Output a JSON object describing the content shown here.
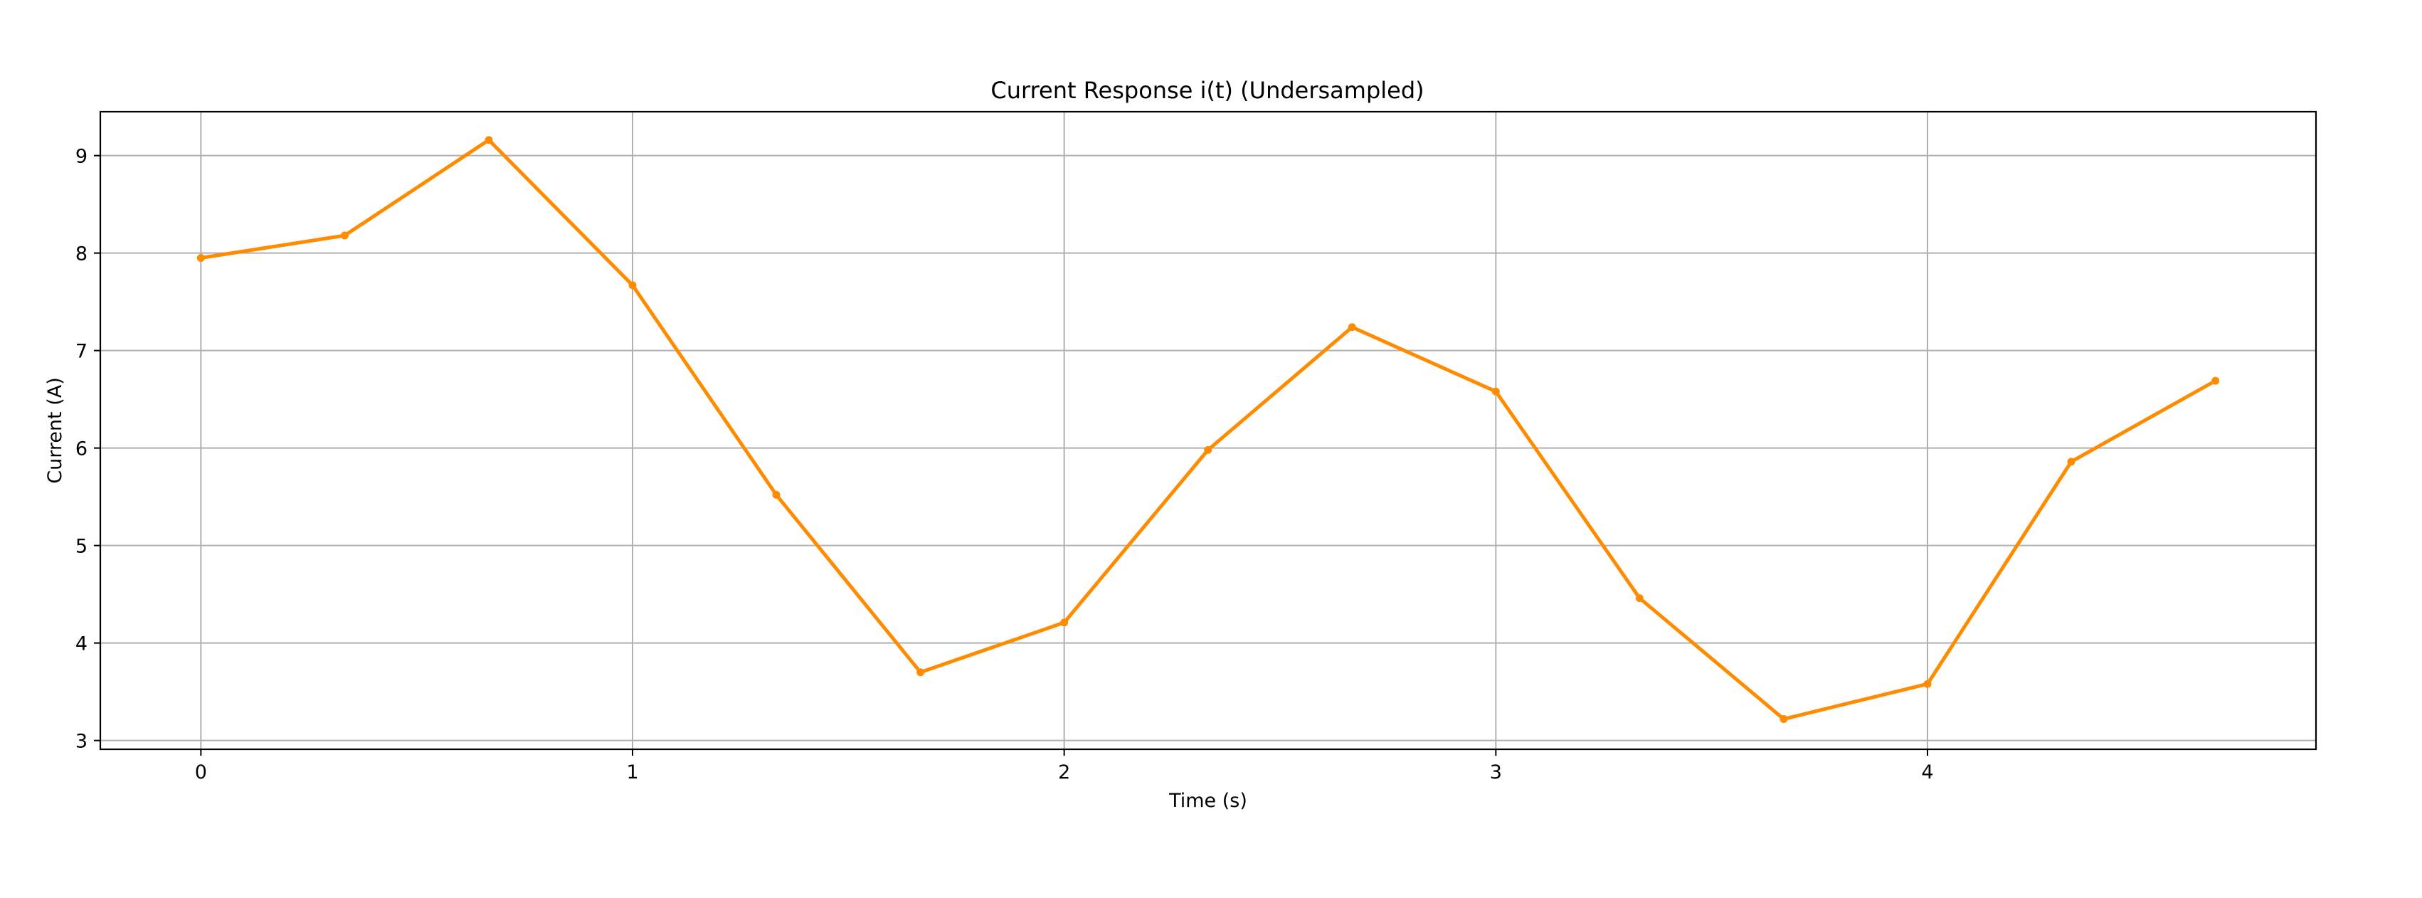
{
  "chart_data": {
    "type": "line",
    "title": "Current Response i(t) (Undersampled)",
    "xlabel": "Time (s)",
    "ylabel": "Current (A)",
    "xlim": [
      -0.233,
      4.9
    ],
    "ylim": [
      2.91,
      9.45
    ],
    "xticks": [
      0,
      1,
      2,
      3,
      4
    ],
    "yticks": [
      3,
      4,
      5,
      6,
      7,
      8,
      9
    ],
    "grid": true,
    "series": [
      {
        "color": "#ff8c00",
        "marker": "circle",
        "x": [
          0,
          0.333,
          0.667,
          1.0,
          1.333,
          1.667,
          2.0,
          2.333,
          2.667,
          3.0,
          3.333,
          3.667,
          4.0,
          4.333,
          4.667
        ],
        "y": [
          7.95,
          8.18,
          9.16,
          7.67,
          5.52,
          3.7,
          4.21,
          5.98,
          7.24,
          6.58,
          4.46,
          3.22,
          3.58,
          5.86,
          6.69
        ]
      }
    ]
  }
}
